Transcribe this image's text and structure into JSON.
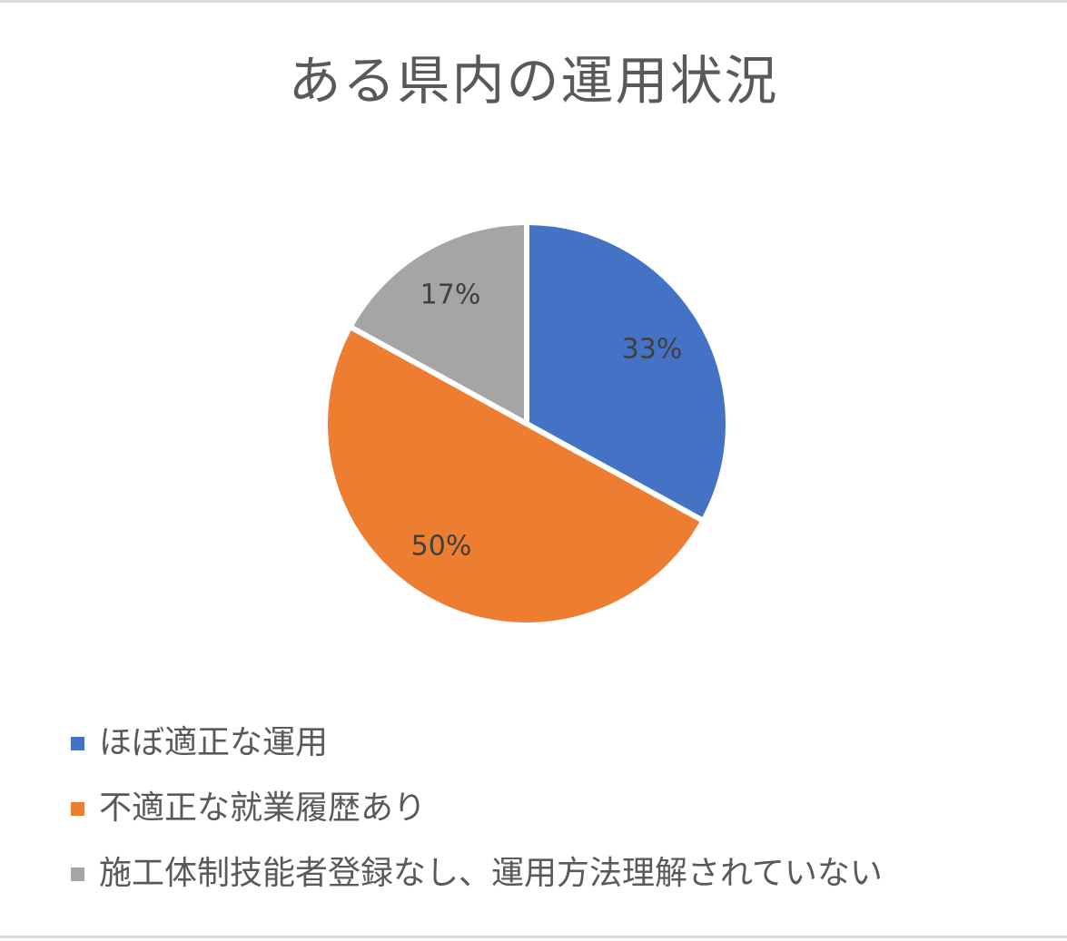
{
  "chart_data": {
    "type": "pie",
    "title": "ある県内の運用状況",
    "slices": [
      {
        "name": "ほぼ適正な運用",
        "value": 33,
        "label": "33%",
        "color": "#4472C4"
      },
      {
        "name": "不適正な就業履歴あり",
        "value": 50,
        "label": "50%",
        "color": "#ED7D31"
      },
      {
        "name": "施工体制技能者登録なし、運用方法理解されていない",
        "value": 17,
        "label": "17%",
        "color": "#A5A5A5"
      }
    ],
    "start_angle": "12 o'clock",
    "direction": "clockwise",
    "legend_position": "bottom-left"
  }
}
